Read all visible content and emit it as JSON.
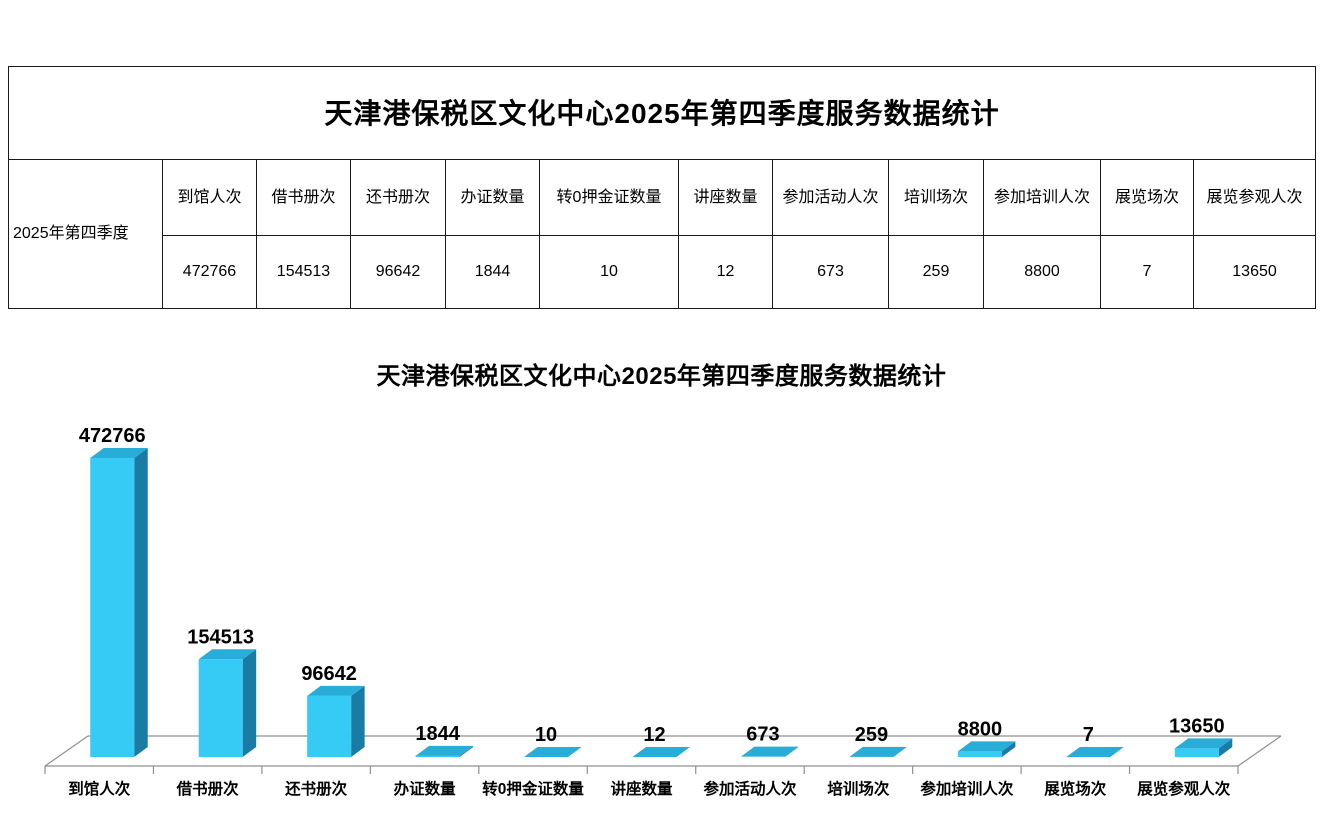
{
  "table": {
    "title": "天津港保税区文化中心2025年第四季度服务数据统计",
    "row_header": "2025年第四季度",
    "columns": [
      "到馆人次",
      "借书册次",
      "还书册次",
      "办证数量",
      "转0押金证数量",
      "讲座数量",
      "参加活动人次",
      "培训场次",
      "参加培训人次",
      "展览场次",
      "展览参观人次"
    ],
    "values": [
      "472766",
      "154513",
      "96642",
      "1844",
      "10",
      "12",
      "673",
      "259",
      "8800",
      "7",
      "13650"
    ]
  },
  "chart_data": {
    "type": "bar",
    "style": "3d-column",
    "title": "天津港保税区文化中心2025年第四季度服务数据统计",
    "categories": [
      "到馆人次",
      "借书册次",
      "还书册次",
      "办证数量",
      "转0押金证数量",
      "讲座数量",
      "参加活动人次",
      "培训场次",
      "参加培训人次",
      "展览场次",
      "展览参观人次"
    ],
    "values": [
      472766,
      154513,
      96642,
      1844,
      10,
      12,
      673,
      259,
      8800,
      7,
      13650
    ],
    "ylim": [
      0,
      472766
    ],
    "grid": false,
    "legend": "none",
    "data_labels": true,
    "colors": {
      "bar_front": "#36CBF5",
      "bar_top": "#28ACD8",
      "bar_side": "#1A7CA4",
      "axis_line": "#909090",
      "label_text": "#000000"
    }
  }
}
